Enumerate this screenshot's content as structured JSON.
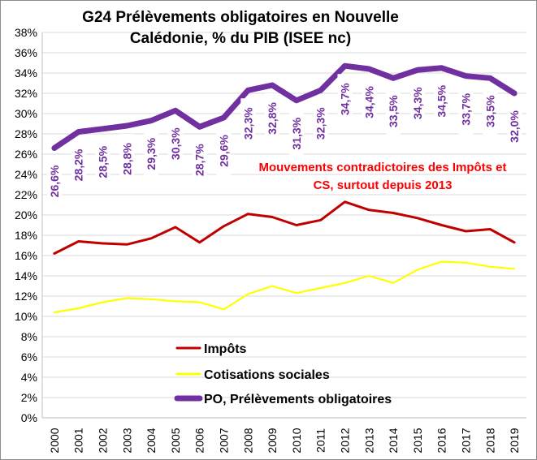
{
  "chart_data": {
    "type": "line",
    "title_lines": [
      "G24  Prélèvements obligatoires en Nouvelle",
      "Calédonie, % du PIB (ISEE nc)"
    ],
    "x": [
      "2000",
      "2001",
      "2002",
      "2003",
      "2004",
      "2005",
      "2006",
      "2007",
      "2008",
      "2009",
      "2010",
      "2011",
      "2012",
      "2013",
      "2014",
      "2015",
      "2016",
      "2017",
      "2018",
      "2019"
    ],
    "ylim": [
      0,
      38
    ],
    "ytick_step": 2,
    "ytick_suffix": "%",
    "grid": true,
    "legend_placement": "lower-center",
    "annotation_lines": [
      "Mouvements contradictoires des Impôts et",
      "CS, surtout depuis 2013"
    ],
    "annotation_color": "#ff0000",
    "series": [
      {
        "name": "Impôts",
        "color": "#c00000",
        "values": [
          16.2,
          17.4,
          17.2,
          17.1,
          17.7,
          18.8,
          17.3,
          18.9,
          20.1,
          19.8,
          19.0,
          19.5,
          21.3,
          20.5,
          20.2,
          19.7,
          19.0,
          18.4,
          18.6,
          17.3
        ]
      },
      {
        "name": "Cotisations sociales",
        "color": "#ffff00",
        "values": [
          10.4,
          10.8,
          11.4,
          11.8,
          11.7,
          11.5,
          11.4,
          10.7,
          12.2,
          13.0,
          12.3,
          12.8,
          13.3,
          14.0,
          13.3,
          14.6,
          15.4,
          15.3,
          14.9,
          14.7
        ]
      },
      {
        "name": "PO, Prélèvements obligatoires",
        "color": "#7030a0",
        "values": [
          26.6,
          28.2,
          28.5,
          28.8,
          29.3,
          30.3,
          28.7,
          29.6,
          32.3,
          32.8,
          31.3,
          32.3,
          34.7,
          34.4,
          33.5,
          34.3,
          34.5,
          33.7,
          33.5,
          32.0
        ],
        "data_labels": [
          "26,6%",
          "28,2%",
          "28,5%",
          "28,8%",
          "29,3%",
          "30,3%",
          "28,7%",
          "29,6%",
          "32,3%",
          "32,8%",
          "31,3%",
          "32,3%",
          "34,7%",
          "34,4%",
          "33,5%",
          "34,3%",
          "34,5%",
          "33,7%",
          "33,5%",
          "32,0%"
        ]
      }
    ]
  }
}
